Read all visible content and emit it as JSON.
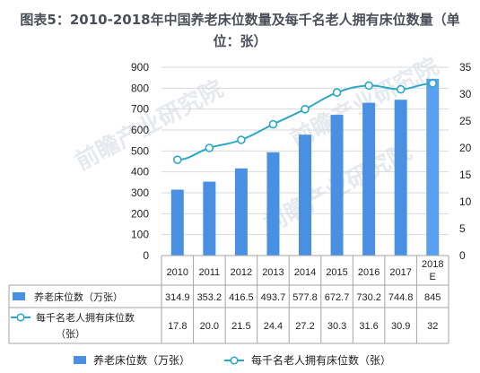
{
  "title": {
    "line1": "图表5：2010-2018年中国养老床位数量及每千名老人拥有床位数量（单",
    "line2": "位：张）"
  },
  "watermark": "前瞻产业研究院",
  "colors": {
    "bar": "#4a90e2",
    "bar_last": "#5aa0ee",
    "line": "#2aa8c8",
    "grid": "#d9d9d9",
    "table_border": "#a6a6a6"
  },
  "chart_data": {
    "type": "bar",
    "categories": [
      "2010",
      "2011",
      "2012",
      "2013",
      "2014",
      "2015",
      "2016",
      "2017",
      "2018E"
    ],
    "category_labels": [
      [
        "2010"
      ],
      [
        "2011"
      ],
      [
        "2012"
      ],
      [
        "2013"
      ],
      [
        "2014"
      ],
      [
        "2015"
      ],
      [
        "2016"
      ],
      [
        "2017"
      ],
      [
        "2018",
        "E"
      ]
    ],
    "series": [
      {
        "name": "养老床位数（万张）",
        "type": "bar",
        "axis": "left",
        "values": [
          314.9,
          353.2,
          416.5,
          493.7,
          577.8,
          672.7,
          730.2,
          744.8,
          845
        ],
        "labels": [
          "314.9",
          "353.2",
          "416.5",
          "493.7",
          "577.8",
          "672.7",
          "730.2",
          "744.8",
          "845"
        ]
      },
      {
        "name": "每千名老人拥有床位数（张）",
        "name_lines": [
          "每千名老人拥有床位数",
          "（张）"
        ],
        "type": "line",
        "axis": "right",
        "values": [
          17.8,
          20.0,
          21.5,
          24.4,
          27.2,
          30.3,
          31.6,
          30.9,
          32
        ],
        "labels": [
          "17.8",
          "20.0",
          "21.5",
          "24.4",
          "27.2",
          "30.3",
          "31.6",
          "30.9",
          "32"
        ]
      }
    ],
    "ylim_left": [
      0,
      900
    ],
    "yticks_left": [
      "900",
      "800",
      "700",
      "600",
      "500",
      "400",
      "300",
      "200",
      "100",
      "0"
    ],
    "ylim_right": [
      0,
      35
    ],
    "yticks_right": [
      "35",
      "30",
      "25",
      "20",
      "15",
      "10",
      "5",
      "0"
    ],
    "grid": true,
    "data_table": true,
    "legend": {
      "position": "bottom",
      "items": [
        "养老床位数（万张）",
        "每千名老人拥有床位数（张）"
      ]
    }
  }
}
